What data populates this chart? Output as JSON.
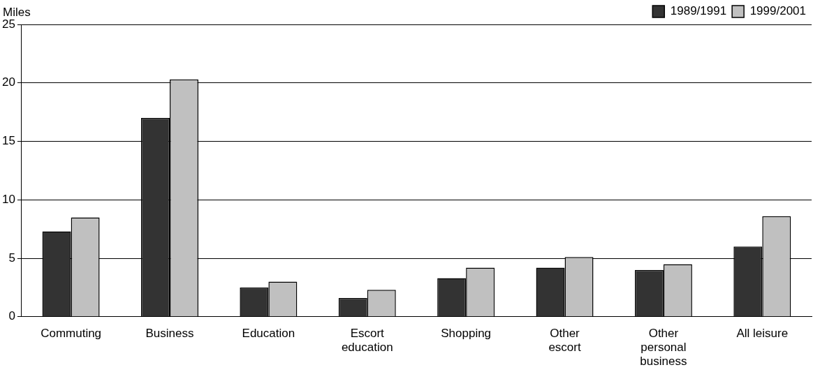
{
  "chart_data": {
    "type": "bar",
    "ylabel": "Miles",
    "categories": [
      "Commuting",
      "Business",
      "Education",
      "Escort education",
      "Shopping",
      "Other escort",
      "Other personal business",
      "All leisure"
    ],
    "series": [
      {
        "name": "1989/1991",
        "color": "#333333",
        "values": [
          7.3,
          17.0,
          2.5,
          1.6,
          3.3,
          4.2,
          4.0,
          6.0
        ]
      },
      {
        "name": "1999/2001",
        "color": "#c0c0c0",
        "values": [
          8.5,
          20.3,
          3.0,
          2.3,
          4.2,
          5.1,
          4.5,
          8.6
        ]
      }
    ],
    "ylim": [
      0,
      25
    ],
    "yticks": [
      0,
      5,
      10,
      15,
      20,
      25
    ],
    "grid": "y",
    "legend": "top right"
  }
}
